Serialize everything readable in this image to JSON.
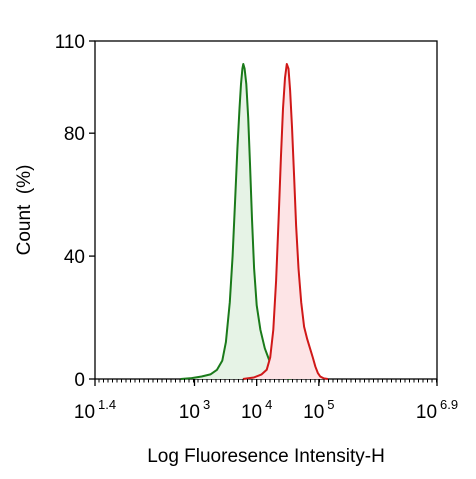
{
  "chart_data": {
    "type": "area",
    "title": "",
    "xlabel": "Log Fluoresence Intensity-H",
    "ylabel": "Count  (%)",
    "x_scale": "log",
    "xlim": [
      25.12,
      7943282
    ],
    "ylim": [
      0,
      110
    ],
    "x_ticks": [
      {
        "value": 25.12,
        "base": "10",
        "exp": "1.4"
      },
      {
        "value": 1000,
        "base": "10",
        "exp": "3"
      },
      {
        "value": 10000,
        "base": "10",
        "exp": "4"
      },
      {
        "value": 100000,
        "base": "10",
        "exp": "5"
      },
      {
        "value": 7943282,
        "base": "10",
        "exp": "6.9"
      }
    ],
    "y_ticks": [
      0,
      40,
      80,
      110
    ],
    "grid": false,
    "legend": "none",
    "series": [
      {
        "color": "#1a7a1a",
        "fill": "#e6f3e6",
        "points": [
          [
            600,
            0
          ],
          [
            900,
            0.3
          ],
          [
            1300,
            0.8
          ],
          [
            1800,
            1.5
          ],
          [
            2300,
            3
          ],
          [
            2800,
            6
          ],
          [
            3200,
            12
          ],
          [
            3700,
            25
          ],
          [
            4100,
            40
          ],
          [
            4500,
            58
          ],
          [
            4900,
            75
          ],
          [
            5300,
            88
          ],
          [
            5600,
            96
          ],
          [
            5900,
            101
          ],
          [
            6100,
            102.5
          ],
          [
            6400,
            101
          ],
          [
            6800,
            96
          ],
          [
            7300,
            85
          ],
          [
            7800,
            70
          ],
          [
            8400,
            52
          ],
          [
            9100,
            36
          ],
          [
            10000,
            24
          ],
          [
            11500,
            16
          ],
          [
            13500,
            10
          ],
          [
            16000,
            6
          ],
          [
            19000,
            3
          ],
          [
            23000,
            1.2
          ],
          [
            28000,
            0.4
          ],
          [
            35000,
            0
          ]
        ]
      },
      {
        "color": "#d01818",
        "fill": "#fde4e6",
        "points": [
          [
            6000,
            0
          ],
          [
            9000,
            0.5
          ],
          [
            12000,
            1.5
          ],
          [
            14500,
            3
          ],
          [
            16500,
            7
          ],
          [
            18500,
            16
          ],
          [
            20500,
            32
          ],
          [
            22500,
            52
          ],
          [
            24500,
            72
          ],
          [
            26500,
            88
          ],
          [
            28500,
            98
          ],
          [
            30500,
            102.5
          ],
          [
            32500,
            101
          ],
          [
            34500,
            94
          ],
          [
            37000,
            82
          ],
          [
            40000,
            66
          ],
          [
            43000,
            50
          ],
          [
            47000,
            36
          ],
          [
            52000,
            25
          ],
          [
            58000,
            17
          ],
          [
            65000,
            13
          ],
          [
            72000,
            10
          ],
          [
            80000,
            7
          ],
          [
            88000,
            4
          ],
          [
            96000,
            2
          ],
          [
            105000,
            0.8
          ],
          [
            120000,
            0.2
          ],
          [
            140000,
            0
          ]
        ]
      }
    ]
  }
}
